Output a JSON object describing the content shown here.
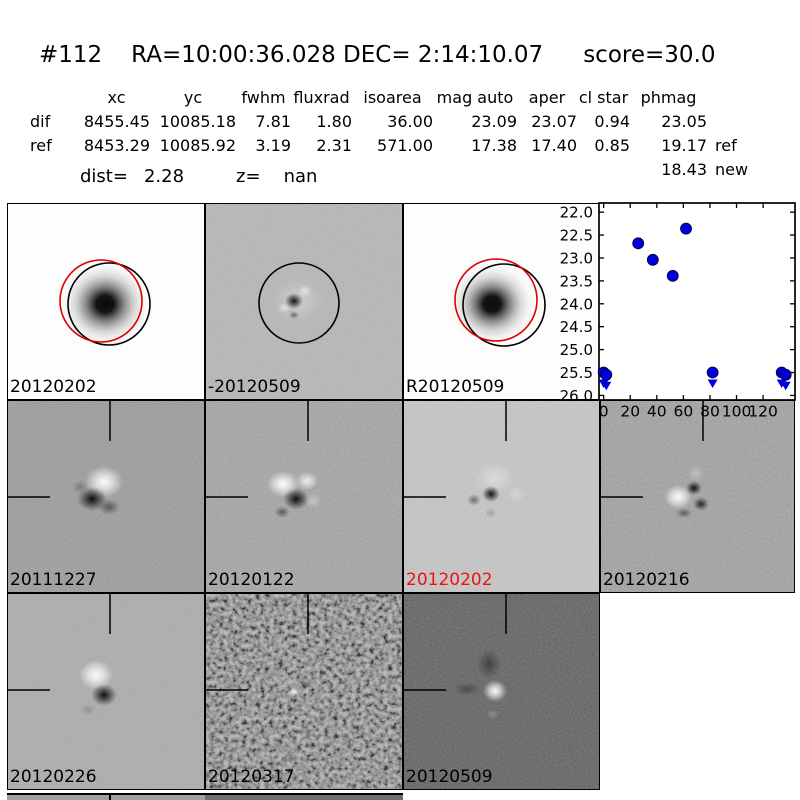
{
  "header": {
    "id": "#112",
    "coordinates": "RA=10:00:36.028 DEC= 2:14:10.07",
    "score": "score=30.0"
  },
  "measurements": {
    "headers": [
      "xc",
      "yc",
      "fwhm",
      "fluxrad",
      "isoarea",
      "mag auto",
      "aper",
      "cl star",
      "phmag"
    ],
    "rows": [
      {
        "label": "dif",
        "values": [
          "8455.45",
          "10085.18",
          "7.81",
          "1.80",
          "36.00",
          "23.09",
          "23.07",
          "0.94",
          "23.05"
        ],
        "suffix": ""
      },
      {
        "label": "ref",
        "values": [
          "8453.29",
          "10085.92",
          "3.19",
          "2.31",
          "571.00",
          "17.38",
          "17.40",
          "0.85",
          "19.17"
        ],
        "suffix": "ref"
      },
      {
        "label": "",
        "values": [
          "",
          "",
          "",
          "",
          "",
          "",
          "",
          "",
          "18.43"
        ],
        "suffix": "new"
      }
    ],
    "dist_label": "dist=",
    "dist_value": "2.28",
    "z_label": "z=",
    "z_value": "nan"
  },
  "cutouts": {
    "row1": [
      {
        "label": "20120202",
        "label_color": "#000000",
        "bg": "#fdfdfd"
      },
      {
        "label": "-20120509",
        "label_color": "#000000",
        "bg": "#b8b8b8"
      },
      {
        "label": "R20120509",
        "label_color": "#000000",
        "bg": "#fdfdfd"
      }
    ],
    "row2": [
      {
        "label": "20111227",
        "label_color": "#000000",
        "bg": "#9c9c9c"
      },
      {
        "label": "20120122",
        "label_color": "#000000",
        "bg": "#a6a6a6"
      },
      {
        "label": "20120202",
        "label_color": "#ee1111",
        "bg": "#c7c7c7"
      },
      {
        "label": "20120216",
        "label_color": "#000000",
        "bg": "#a2a2a2"
      }
    ],
    "row3": [
      {
        "label": "20120226",
        "label_color": "#000000",
        "bg": "#adadad"
      },
      {
        "label": "20120317",
        "label_color": "#000000",
        "bg": "#767676"
      },
      {
        "label": "20120509",
        "label_color": "#000000",
        "bg": "#5a5a5a"
      }
    ]
  },
  "colors": {
    "aperture_circle": "#000000",
    "reference_circle": "#dd0000",
    "marker_blue": "#0000dd"
  },
  "chart_data": {
    "type": "scatter",
    "title": "",
    "xlabel": "",
    "ylabel": "",
    "xlim": [
      -3.5,
      144
    ],
    "ylim": [
      26.1,
      21.8
    ],
    "xticks": [
      0,
      20,
      40,
      60,
      80,
      100,
      120
    ],
    "ytick_labels": [
      "22.0",
      "22.5",
      "23.0",
      "23.5",
      "24.0",
      "24.5",
      "25.0",
      "25.5",
      "26.0"
    ],
    "grid": false,
    "series": [
      {
        "name": "detections",
        "marker": "circle",
        "color": "#0000dd",
        "points": [
          [
            26,
            22.68
          ],
          [
            37,
            23.04
          ],
          [
            52,
            23.39
          ],
          [
            62,
            22.36
          ]
        ]
      },
      {
        "name": "upper-limits",
        "marker": "circle-down-arrow",
        "color": "#0000dd",
        "points": [
          [
            0,
            25.5
          ],
          [
            2,
            25.55
          ],
          [
            82,
            25.5
          ],
          [
            134,
            25.5
          ],
          [
            137,
            25.55
          ]
        ]
      }
    ]
  }
}
